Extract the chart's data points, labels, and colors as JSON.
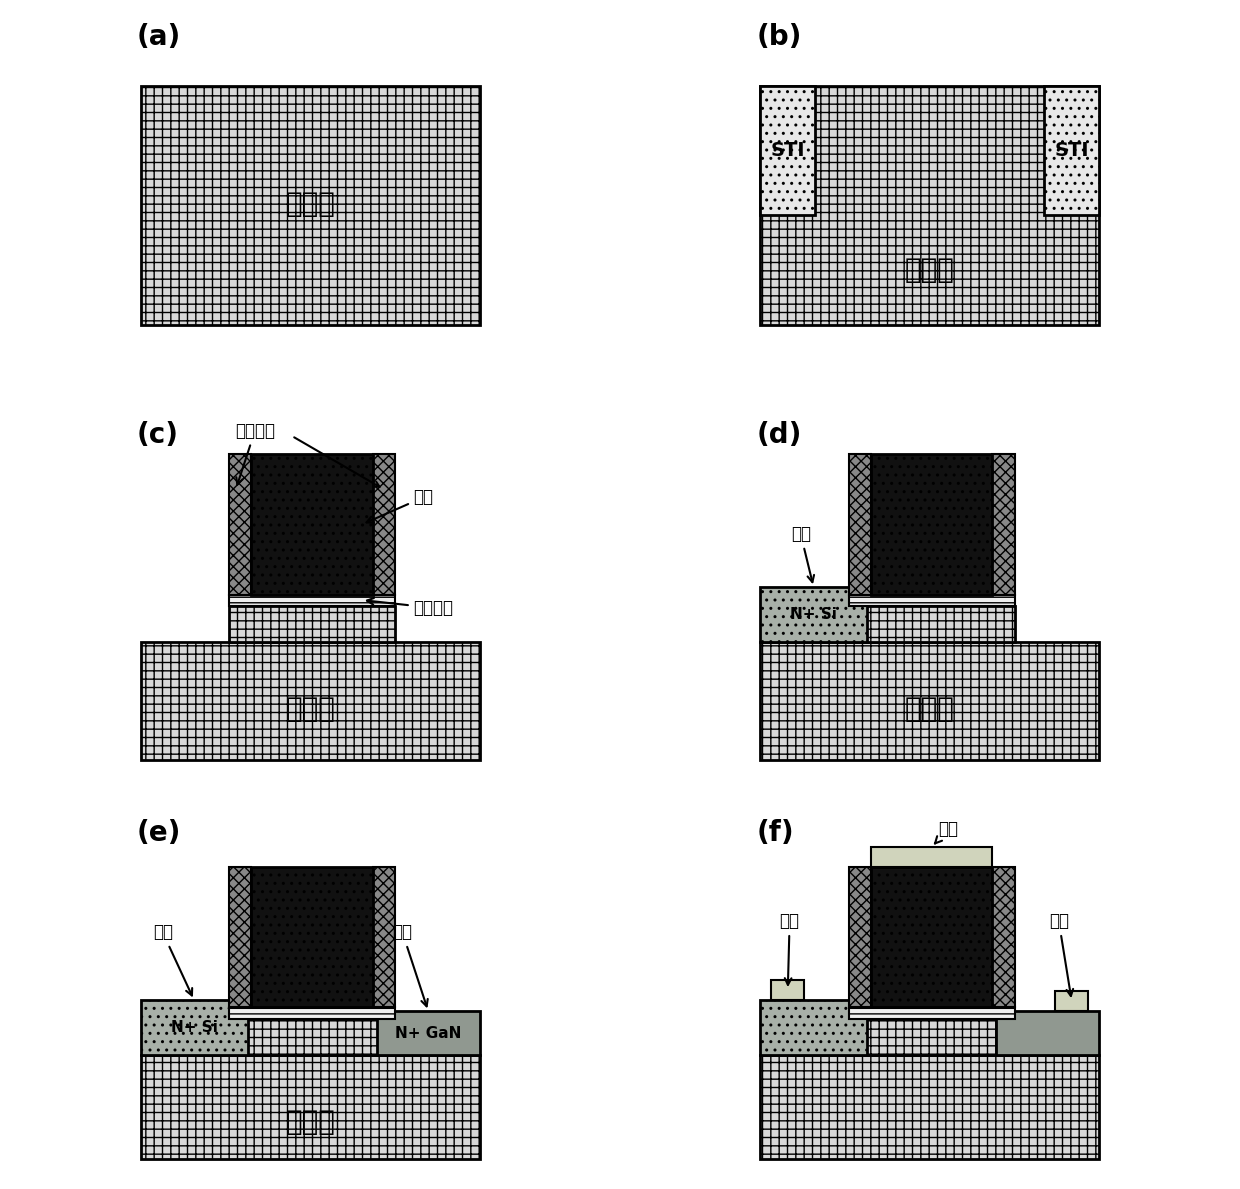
{
  "panels": [
    "(a)",
    "(b)",
    "(c)",
    "(d)",
    "(e)",
    "(f)"
  ],
  "silicon_label": "硅衬底",
  "gate_label": "尵极",
  "gate_oxide_label": "尵氧化层",
  "gate_sidewall_label": "尵极侧墙",
  "source_label": "源极",
  "drain_label": "漏极",
  "contact_label": "接触",
  "nsi_label": "N+ Si",
  "ngan_label": "N+ GaN",
  "sti_label": "STI",
  "bg": "#ffffff",
  "c_sub": "#d8d8d8",
  "c_sti": "#e8e8e8",
  "c_gate": "#111111",
  "c_sw": "#888888",
  "c_gox": "#efefef",
  "c_nsi": "#a8b0a8",
  "c_ngan": "#909890",
  "c_contact": "#d0d4bc"
}
